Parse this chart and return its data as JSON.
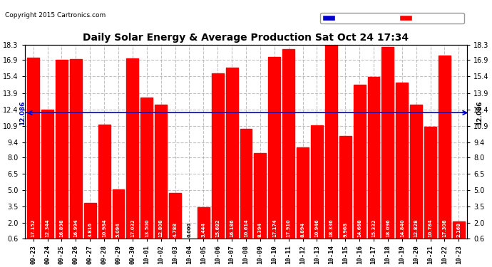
{
  "title": "Daily Solar Energy & Average Production Sat Oct 24 17:34",
  "copyright": "Copyright 2015 Cartronics.com",
  "average_value": 12.086,
  "bar_color": "#ff0000",
  "average_line_color": "#0000cd",
  "background_color": "#ffffff",
  "plot_bg_color": "#ffffff",
  "grid_color": "#999999",
  "categories": [
    "09-23",
    "09-24",
    "09-25",
    "09-26",
    "09-27",
    "09-28",
    "09-29",
    "09-30",
    "10-01",
    "10-02",
    "10-03",
    "10-04",
    "10-05",
    "10-06",
    "10-07",
    "10-08",
    "10-09",
    "10-10",
    "10-11",
    "10-12",
    "10-13",
    "10-14",
    "10-15",
    "10-16",
    "10-17",
    "10-18",
    "10-19",
    "10-20",
    "10-21",
    "10-22",
    "10-23"
  ],
  "values": [
    17.152,
    12.344,
    16.898,
    16.994,
    3.816,
    10.984,
    5.094,
    17.032,
    13.5,
    12.808,
    4.788,
    0.0,
    3.444,
    15.682,
    16.186,
    10.614,
    8.394,
    17.174,
    17.91,
    8.894,
    10.946,
    18.336,
    9.968,
    14.668,
    15.332,
    18.096,
    14.84,
    12.828,
    10.784,
    17.308,
    2.168
  ],
  "ylim_min": 0.6,
  "ylim_max": 18.3,
  "yticks": [
    0.6,
    2.0,
    3.5,
    5.0,
    6.5,
    8.0,
    9.4,
    10.9,
    12.4,
    13.9,
    15.4,
    16.9,
    18.3
  ],
  "legend_avg_color": "#0000cc",
  "legend_daily_color": "#ff0000",
  "avg_label": "12.086"
}
